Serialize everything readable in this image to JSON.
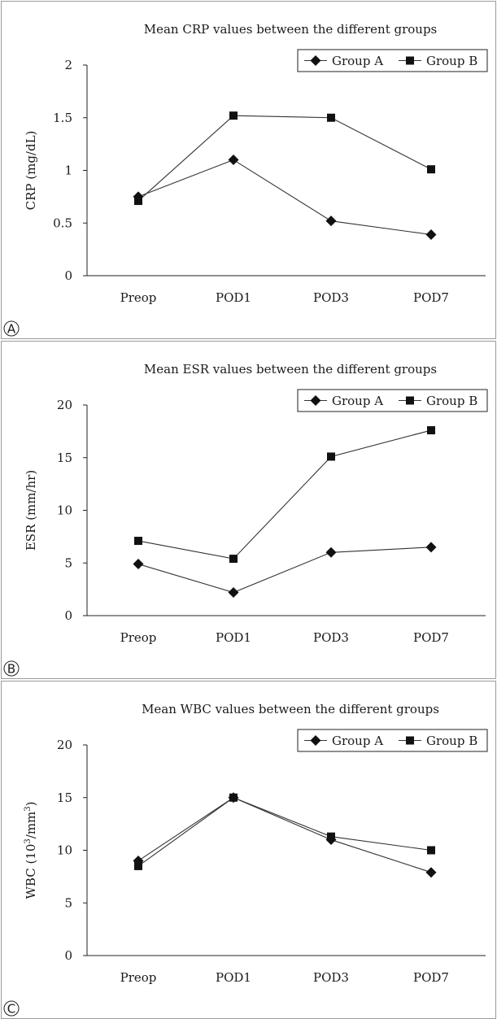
{
  "chart_data": [
    {
      "type": "line",
      "panel_label": "A",
      "title": "Mean CRP values between the different groups",
      "ylabel": "CRP (mg/dL)",
      "ylabel_sup": "",
      "ylabel_tail": "",
      "categories": [
        "Preop",
        "POD1",
        "POD3",
        "POD7"
      ],
      "ylim": [
        0,
        2
      ],
      "yticks": [
        0,
        0.5,
        1,
        1.5,
        2
      ],
      "ytick_labels": [
        "0",
        "0.5",
        "1",
        "1.5",
        "2"
      ],
      "legend_position": "top-right",
      "series": [
        {
          "name": "Group A",
          "marker": "diamond",
          "values": [
            0.75,
            1.1,
            0.52,
            0.39
          ]
        },
        {
          "name": "Group B",
          "marker": "square",
          "values": [
            0.71,
            1.52,
            1.5,
            1.01
          ]
        }
      ]
    },
    {
      "type": "line",
      "panel_label": "B",
      "title": "Mean ESR values between the different groups",
      "ylabel": "ESR (mm/hr)",
      "ylabel_sup": "",
      "ylabel_tail": "",
      "categories": [
        "Preop",
        "POD1",
        "POD3",
        "POD7"
      ],
      "ylim": [
        0,
        20
      ],
      "yticks": [
        0,
        5,
        10,
        15,
        20
      ],
      "ytick_labels": [
        "0",
        "5",
        "10",
        "15",
        "20"
      ],
      "legend_position": "top-right",
      "series": [
        {
          "name": "Group A",
          "marker": "diamond",
          "values": [
            4.9,
            2.2,
            6.0,
            6.5
          ]
        },
        {
          "name": "Group B",
          "marker": "square",
          "values": [
            7.1,
            5.4,
            15.1,
            17.6
          ]
        }
      ]
    },
    {
      "type": "line",
      "panel_label": "C",
      "title": "Mean WBC values between the different groups",
      "ylabel": "WBC (10",
      "ylabel_sup": "3",
      "ylabel_tail": "/mm",
      "ylabel_sup2": "3",
      "ylabel_end": ")",
      "categories": [
        "Preop",
        "POD1",
        "POD3",
        "POD7"
      ],
      "ylim": [
        0,
        20
      ],
      "yticks": [
        0,
        5,
        10,
        15,
        20
      ],
      "ytick_labels": [
        "0",
        "5",
        "10",
        "15",
        "20"
      ],
      "legend_position": "top-right",
      "series": [
        {
          "name": "Group A",
          "marker": "diamond",
          "values": [
            9.0,
            15.0,
            11.0,
            7.9
          ]
        },
        {
          "name": "Group B",
          "marker": "square",
          "values": [
            8.5,
            15.0,
            11.3,
            10.0
          ]
        }
      ]
    }
  ]
}
